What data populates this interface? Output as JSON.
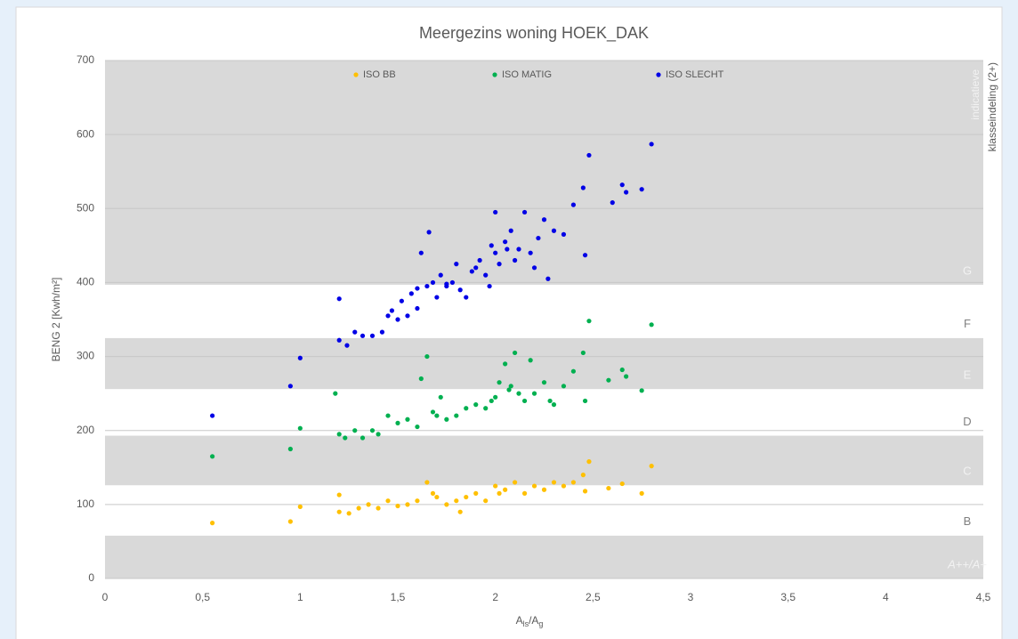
{
  "chart_data": {
    "type": "scatter",
    "title": "Meergezins woning HOEK_DAK",
    "ylabel": "BENG 2 [Kwh/m²]",
    "xlabel_parts": [
      "A",
      "ls",
      "/A",
      "g"
    ],
    "side_labels": [
      "indicatieve",
      "klasseindeling (2+)"
    ],
    "xlim": [
      0,
      4.5
    ],
    "ylim": [
      0,
      700
    ],
    "xticks": [
      0,
      {
        "value": 0.5,
        "label": "0,5"
      },
      1,
      {
        "value": 1.5,
        "label": "1,5"
      },
      2,
      {
        "value": 2.5,
        "label": "2,5"
      },
      3,
      {
        "value": 3.5,
        "label": "3,5"
      },
      4,
      {
        "value": 4.5,
        "label": "4,5"
      }
    ],
    "yticks": [
      0,
      100,
      200,
      300,
      400,
      500,
      600,
      700
    ],
    "grid": true,
    "legend": "top",
    "bands": [
      {
        "label": "A++/A+",
        "from": 0,
        "to": 58,
        "color": "#d9d9d9",
        "label_color": "#f2f2f2"
      },
      {
        "label": "B",
        "from": 58,
        "to": 126,
        "color": "#ffffff",
        "label_color": "#808080"
      },
      {
        "label": "C",
        "from": 126,
        "to": 193,
        "color": "#d9d9d9",
        "label_color": "#f2f2f2"
      },
      {
        "label": "D",
        "from": 193,
        "to": 256,
        "color": "#ffffff",
        "label_color": "#808080"
      },
      {
        "label": "E",
        "from": 256,
        "to": 325,
        "color": "#d9d9d9",
        "label_color": "#f2f2f2"
      },
      {
        "label": "F",
        "from": 325,
        "to": 397,
        "color": "#ffffff",
        "label_color": "#808080"
      },
      {
        "label": "G",
        "from": 397,
        "to": 700,
        "color": "#d9d9d9",
        "label_color": "#f2f2f2"
      }
    ],
    "series": [
      {
        "name": "ISO BB",
        "color": "#ffc000",
        "x": [
          0.55,
          0.95,
          1.0,
          1.2,
          1.2,
          1.25,
          1.3,
          1.35,
          1.4,
          1.45,
          1.5,
          1.55,
          1.6,
          1.65,
          1.7,
          1.75,
          1.8,
          1.85,
          1.9,
          1.95,
          2.0,
          2.02,
          2.05,
          2.1,
          2.15,
          2.2,
          2.25,
          2.3,
          2.35,
          2.4,
          2.45,
          2.46,
          2.48,
          2.58,
          2.65,
          2.75,
          2.8,
          1.82,
          1.68
        ],
        "values": [
          75,
          77,
          97,
          113,
          90,
          88,
          95,
          100,
          95,
          105,
          98,
          100,
          105,
          130,
          110,
          100,
          105,
          110,
          115,
          105,
          125,
          115,
          120,
          130,
          115,
          125,
          120,
          130,
          125,
          130,
          140,
          118,
          158,
          122,
          128,
          115,
          152,
          90,
          115
        ]
      },
      {
        "name": "ISO MATIG",
        "color": "#00b050",
        "x": [
          0.55,
          0.95,
          1.0,
          1.18,
          1.2,
          1.23,
          1.28,
          1.32,
          1.37,
          1.4,
          1.45,
          1.5,
          1.55,
          1.6,
          1.62,
          1.65,
          1.68,
          1.7,
          1.72,
          1.75,
          1.8,
          1.85,
          1.9,
          1.95,
          2.0,
          2.02,
          2.05,
          2.08,
          2.1,
          2.12,
          2.15,
          2.18,
          2.2,
          2.25,
          2.28,
          2.3,
          2.35,
          2.4,
          2.45,
          2.46,
          2.48,
          2.58,
          2.65,
          2.67,
          2.75,
          2.8,
          1.98,
          2.07
        ],
        "values": [
          165,
          175,
          203,
          250,
          195,
          190,
          200,
          190,
          200,
          195,
          220,
          210,
          215,
          205,
          270,
          300,
          225,
          220,
          245,
          215,
          220,
          230,
          235,
          230,
          245,
          265,
          290,
          260,
          305,
          250,
          240,
          295,
          250,
          265,
          240,
          235,
          260,
          280,
          305,
          240,
          348,
          268,
          282,
          273,
          254,
          343,
          240,
          255
        ]
      },
      {
        "name": "ISO SLECHT",
        "color": "#0000e6",
        "x": [
          0.55,
          0.95,
          1.0,
          1.2,
          1.2,
          1.24,
          1.28,
          1.32,
          1.37,
          1.42,
          1.45,
          1.47,
          1.5,
          1.52,
          1.55,
          1.57,
          1.6,
          1.62,
          1.65,
          1.66,
          1.68,
          1.7,
          1.72,
          1.75,
          1.78,
          1.8,
          1.82,
          1.85,
          1.88,
          1.9,
          1.92,
          1.95,
          1.97,
          2.0,
          2.0,
          2.02,
          2.05,
          2.08,
          2.1,
          2.12,
          2.15,
          2.18,
          2.2,
          2.22,
          2.25,
          2.27,
          2.3,
          2.35,
          2.4,
          2.45,
          2.46,
          2.48,
          2.6,
          2.65,
          2.67,
          2.75,
          2.8,
          1.98,
          2.06,
          1.6,
          1.75
        ],
        "values": [
          220,
          260,
          298,
          378,
          322,
          315,
          333,
          328,
          328,
          333,
          355,
          362,
          350,
          375,
          355,
          385,
          365,
          440,
          395,
          468,
          400,
          380,
          410,
          395,
          400,
          425,
          390,
          380,
          415,
          420,
          430,
          410,
          395,
          440,
          495,
          425,
          455,
          470,
          430,
          445,
          495,
          440,
          420,
          460,
          485,
          405,
          470,
          465,
          505,
          528,
          437,
          572,
          508,
          532,
          522,
          526,
          587,
          450,
          445,
          392,
          398
        ]
      }
    ]
  }
}
